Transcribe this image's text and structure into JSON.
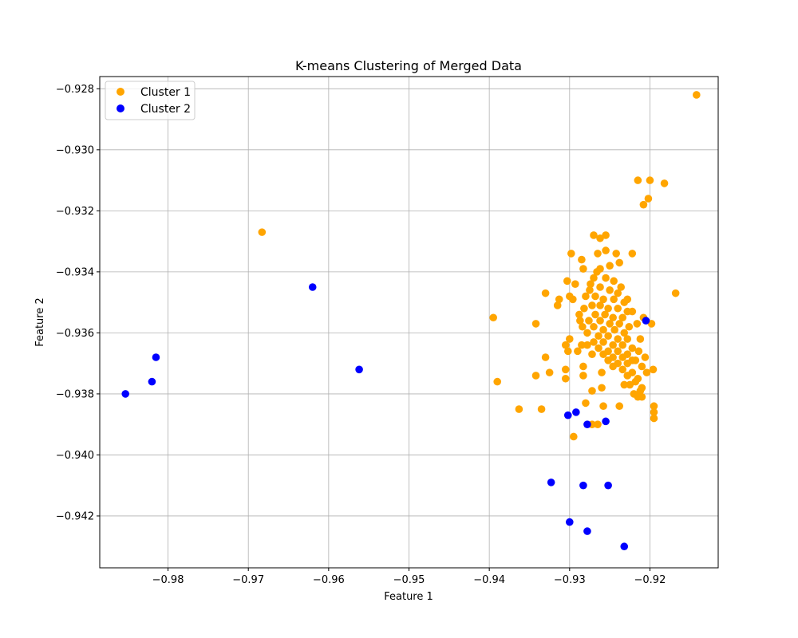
{
  "chart_data": {
    "type": "scatter",
    "title": "K-means Clustering of Merged Data",
    "xlabel": "Feature 1",
    "ylabel": "Feature 2",
    "xlim": [
      -0.9885,
      -0.9115
    ],
    "ylim": [
      -0.9437,
      -0.9276
    ],
    "xticks": [
      -0.98,
      -0.97,
      -0.96,
      -0.95,
      -0.94,
      -0.93,
      -0.92
    ],
    "xtick_labels": [
      "−0.98",
      "−0.97",
      "−0.96",
      "−0.95",
      "−0.94",
      "−0.93",
      "−0.92"
    ],
    "yticks": [
      -0.942,
      -0.94,
      -0.938,
      -0.936,
      -0.934,
      -0.932,
      -0.93,
      -0.928
    ],
    "ytick_labels": [
      "−0.942",
      "−0.940",
      "−0.938",
      "−0.936",
      "−0.934",
      "−0.932",
      "−0.930",
      "−0.928"
    ],
    "grid": true,
    "legend_position": "top-left",
    "series": [
      {
        "name": "Cluster 1",
        "color": "#ffa500",
        "points": [
          [
            -0.9142,
            -0.9282
          ],
          [
            -0.9215,
            -0.931
          ],
          [
            -0.92,
            -0.931
          ],
          [
            -0.9182,
            -0.9311
          ],
          [
            -0.9202,
            -0.9316
          ],
          [
            -0.9208,
            -0.9318
          ],
          [
            -0.9683,
            -0.9327
          ],
          [
            -0.9255,
            -0.9328
          ],
          [
            -0.927,
            -0.9328
          ],
          [
            -0.9262,
            -0.9329
          ],
          [
            -0.9255,
            -0.9333
          ],
          [
            -0.9242,
            -0.9334
          ],
          [
            -0.9298,
            -0.9334
          ],
          [
            -0.9265,
            -0.9334
          ],
          [
            -0.9222,
            -0.9334
          ],
          [
            -0.9285,
            -0.9336
          ],
          [
            -0.9238,
            -0.9337
          ],
          [
            -0.9262,
            -0.9339
          ],
          [
            -0.9283,
            -0.9339
          ],
          [
            -0.9303,
            -0.9343
          ],
          [
            -0.9293,
            -0.9344
          ],
          [
            -0.9168,
            -0.9347
          ],
          [
            -0.933,
            -0.9347
          ],
          [
            -0.93,
            -0.9348
          ],
          [
            -0.9313,
            -0.9349
          ],
          [
            -0.9296,
            -0.9349
          ],
          [
            -0.9315,
            -0.9351
          ],
          [
            -0.9208,
            -0.9355
          ],
          [
            -0.9395,
            -0.9355
          ],
          [
            -0.9287,
            -0.9356
          ],
          [
            -0.9342,
            -0.9357
          ],
          [
            -0.9198,
            -0.9357
          ],
          [
            -0.93,
            -0.9362
          ],
          [
            -0.9305,
            -0.9364
          ],
          [
            -0.9285,
            -0.9364
          ],
          [
            -0.929,
            -0.9366
          ],
          [
            -0.9302,
            -0.9366
          ],
          [
            -0.933,
            -0.9368
          ],
          [
            -0.9283,
            -0.9371
          ],
          [
            -0.921,
            -0.9371
          ],
          [
            -0.9305,
            -0.9372
          ],
          [
            -0.9196,
            -0.9372
          ],
          [
            -0.9325,
            -0.9373
          ],
          [
            -0.926,
            -0.9373
          ],
          [
            -0.9342,
            -0.9374
          ],
          [
            -0.9283,
            -0.9374
          ],
          [
            -0.9305,
            -0.9375
          ],
          [
            -0.939,
            -0.9376
          ],
          [
            -0.9215,
            -0.9375
          ],
          [
            -0.9232,
            -0.9377
          ],
          [
            -0.921,
            -0.9378
          ],
          [
            -0.926,
            -0.9378
          ],
          [
            -0.9272,
            -0.9379
          ],
          [
            -0.9212,
            -0.9379
          ],
          [
            -0.922,
            -0.938
          ],
          [
            -0.9215,
            -0.9381
          ],
          [
            -0.921,
            -0.9381
          ],
          [
            -0.928,
            -0.9383
          ],
          [
            -0.9195,
            -0.9384
          ],
          [
            -0.9238,
            -0.9384
          ],
          [
            -0.9258,
            -0.9384
          ],
          [
            -0.9335,
            -0.9385
          ],
          [
            -0.9363,
            -0.9385
          ],
          [
            -0.9195,
            -0.9386
          ],
          [
            -0.9195,
            -0.9388
          ],
          [
            -0.9272,
            -0.939
          ],
          [
            -0.9265,
            -0.939
          ],
          [
            -0.9295,
            -0.9394
          ],
          [
            -0.927,
            -0.9342
          ],
          [
            -0.9255,
            -0.9342
          ],
          [
            -0.9245,
            -0.9343
          ],
          [
            -0.9262,
            -0.9345
          ],
          [
            -0.9275,
            -0.9346
          ],
          [
            -0.925,
            -0.9346
          ],
          [
            -0.924,
            -0.9347
          ],
          [
            -0.928,
            -0.9348
          ],
          [
            -0.9268,
            -0.9348
          ],
          [
            -0.9258,
            -0.9349
          ],
          [
            -0.9245,
            -0.9349
          ],
          [
            -0.9232,
            -0.935
          ],
          [
            -0.9272,
            -0.9351
          ],
          [
            -0.9262,
            -0.9351
          ],
          [
            -0.9252,
            -0.9352
          ],
          [
            -0.924,
            -0.9352
          ],
          [
            -0.9282,
            -0.9352
          ],
          [
            -0.9228,
            -0.9353
          ],
          [
            -0.9268,
            -0.9354
          ],
          [
            -0.9256,
            -0.9354
          ],
          [
            -0.9246,
            -0.9355
          ],
          [
            -0.9234,
            -0.9355
          ],
          [
            -0.9276,
            -0.9356
          ],
          [
            -0.9262,
            -0.9356
          ],
          [
            -0.925,
            -0.9357
          ],
          [
            -0.9238,
            -0.9357
          ],
          [
            -0.9226,
            -0.9358
          ],
          [
            -0.927,
            -0.9358
          ],
          [
            -0.9258,
            -0.9359
          ],
          [
            -0.9244,
            -0.9359
          ],
          [
            -0.9232,
            -0.936
          ],
          [
            -0.9278,
            -0.936
          ],
          [
            -0.9264,
            -0.9361
          ],
          [
            -0.9252,
            -0.9361
          ],
          [
            -0.924,
            -0.9362
          ],
          [
            -0.9228,
            -0.9362
          ],
          [
            -0.927,
            -0.9363
          ],
          [
            -0.9258,
            -0.9363
          ],
          [
            -0.9246,
            -0.9364
          ],
          [
            -0.9234,
            -0.9364
          ],
          [
            -0.9222,
            -0.9365
          ],
          [
            -0.9264,
            -0.9365
          ],
          [
            -0.9252,
            -0.9366
          ],
          [
            -0.924,
            -0.9366
          ],
          [
            -0.9228,
            -0.9367
          ],
          [
            -0.9258,
            -0.9367
          ],
          [
            -0.9246,
            -0.9368
          ],
          [
            -0.9234,
            -0.9368
          ],
          [
            -0.9222,
            -0.9369
          ],
          [
            -0.9252,
            -0.9369
          ],
          [
            -0.924,
            -0.937
          ],
          [
            -0.9228,
            -0.937
          ],
          [
            -0.9246,
            -0.9371
          ],
          [
            -0.9234,
            -0.9372
          ],
          [
            -0.9222,
            -0.9373
          ],
          [
            -0.9228,
            -0.9374
          ],
          [
            -0.9218,
            -0.9376
          ],
          [
            -0.9225,
            -0.9377
          ],
          [
            -0.9272,
            -0.9367
          ],
          [
            -0.9278,
            -0.9364
          ],
          [
            -0.9284,
            -0.9358
          ],
          [
            -0.9288,
            -0.9354
          ],
          [
            -0.9274,
            -0.9344
          ],
          [
            -0.9266,
            -0.934
          ],
          [
            -0.925,
            -0.9338
          ],
          [
            -0.9236,
            -0.9345
          ],
          [
            -0.9228,
            -0.9349
          ],
          [
            -0.9222,
            -0.9353
          ],
          [
            -0.9216,
            -0.9357
          ],
          [
            -0.9212,
            -0.9362
          ],
          [
            -0.9214,
            -0.9366
          ],
          [
            -0.9218,
            -0.9369
          ],
          [
            -0.9206,
            -0.9368
          ],
          [
            -0.9204,
            -0.9373
          ]
        ]
      },
      {
        "name": "Cluster 2",
        "color": "#0000ff",
        "points": [
          [
            -0.962,
            -0.9345
          ],
          [
            -0.9205,
            -0.9356
          ],
          [
            -0.9815,
            -0.9368
          ],
          [
            -0.9562,
            -0.9372
          ],
          [
            -0.982,
            -0.9376
          ],
          [
            -0.9853,
            -0.938
          ],
          [
            -0.9292,
            -0.9386
          ],
          [
            -0.9302,
            -0.9387
          ],
          [
            -0.9255,
            -0.9389
          ],
          [
            -0.9278,
            -0.939
          ],
          [
            -0.9323,
            -0.9409
          ],
          [
            -0.9283,
            -0.941
          ],
          [
            -0.9252,
            -0.941
          ],
          [
            -0.93,
            -0.9422
          ],
          [
            -0.9278,
            -0.9425
          ],
          [
            -0.9232,
            -0.943
          ]
        ]
      }
    ]
  }
}
